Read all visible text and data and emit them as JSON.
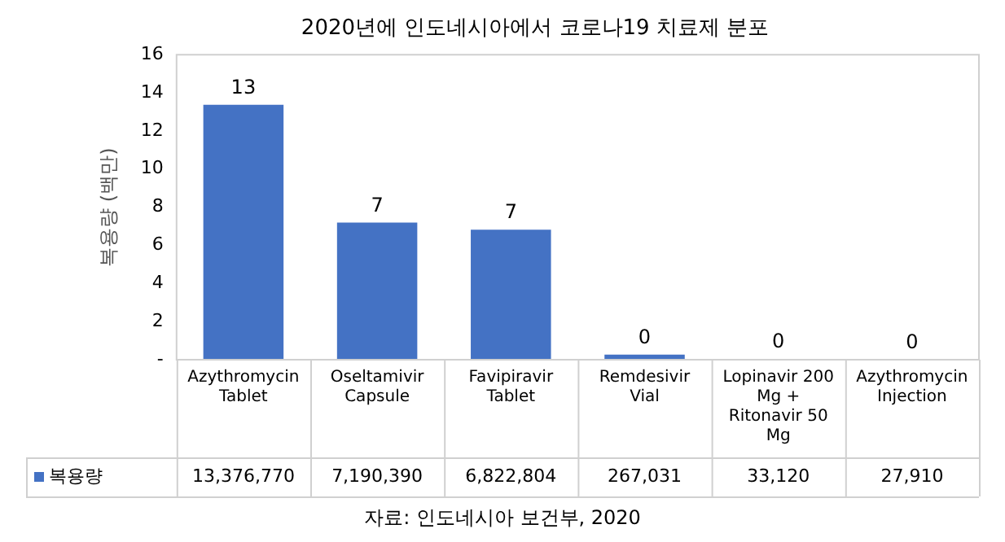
{
  "chart_data": {
    "type": "bar",
    "title": "2020년에 인도네시아에서 코로나19 치료제 분포",
    "ylabel": "복용량 (백만)",
    "categories": [
      "Azythromycin Tablet",
      "Oseltamivir Capsule",
      "Favipiravir Tablet",
      "Remdesivir Vial",
      "Lopinavir 200 Mg + Ritonavir 50 Mg",
      "Azythromycin Injection"
    ],
    "series": [
      {
        "name": "복용량",
        "color": "#4472c4",
        "values": [
          13.37677,
          7.19039,
          6.822804,
          0.267031,
          0.03312,
          0.02791
        ],
        "value_labels": [
          "13",
          "7",
          "7",
          "0",
          "0",
          "0"
        ]
      }
    ],
    "ylim": [
      0,
      16
    ],
    "yticks": [
      {
        "value": 0,
        "label": "-"
      },
      2,
      4,
      6,
      8,
      10,
      12,
      14,
      16
    ],
    "grid": false,
    "legend": "bottom",
    "annotations": [
      "13,376,770",
      "7,190,390",
      "6,822,804",
      "267,031",
      "33,120",
      "27,910",
      "자료: 인도네시아 보건부, 2020"
    ]
  }
}
